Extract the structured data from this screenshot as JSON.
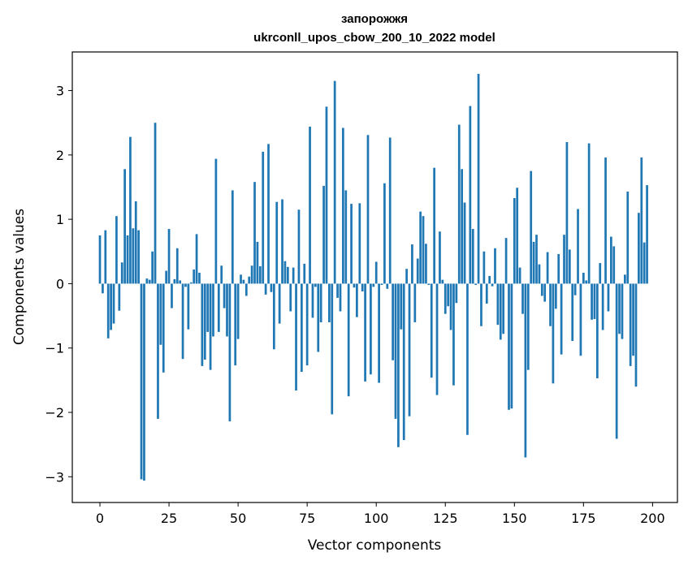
{
  "chart_data": {
    "type": "bar",
    "title_line1": "запорожжя",
    "title_line2": "ukrconll_upos_cbow_200_10_2022 model",
    "xlabel": "Vector components",
    "ylabel": "Components values",
    "xlim": [
      -10,
      209
    ],
    "ylim": [
      -3.4,
      3.6
    ],
    "xticks": [
      0,
      25,
      50,
      75,
      100,
      125,
      150,
      175,
      200
    ],
    "xtick_labels": [
      "0",
      "25",
      "50",
      "75",
      "100",
      "125",
      "150",
      "175",
      "200"
    ],
    "yticks": [
      -3,
      -2,
      -1,
      0,
      1,
      2,
      3
    ],
    "ytick_labels": [
      "−3",
      "−2",
      "−1",
      "0",
      "1",
      "2",
      "3"
    ],
    "bar_color": "#1f77b4",
    "values": [
      0.75,
      -0.15,
      0.83,
      -0.85,
      -0.72,
      -0.62,
      1.05,
      -0.42,
      0.33,
      1.78,
      0.75,
      2.28,
      0.86,
      1.28,
      0.83,
      -3.04,
      -3.06,
      0.08,
      0.06,
      0.5,
      2.5,
      -2.1,
      -0.95,
      -1.38,
      0.2,
      0.85,
      -0.38,
      0.07,
      0.55,
      0.05,
      -1.17,
      -0.05,
      -0.71,
      0.02,
      0.22,
      0.77,
      0.17,
      -1.28,
      -1.18,
      -0.75,
      -1.34,
      -0.82,
      1.94,
      -0.75,
      0.28,
      -0.38,
      -0.82,
      -2.14,
      1.45,
      -1.27,
      -0.86,
      0.14,
      0.06,
      -0.19,
      0.11,
      0.28,
      1.58,
      0.65,
      0.27,
      2.05,
      -0.17,
      2.17,
      -0.13,
      -1.02,
      1.27,
      -0.62,
      1.31,
      0.35,
      0.26,
      -0.43,
      0.25,
      -1.66,
      1.15,
      -1.37,
      0.31,
      -1.27,
      2.44,
      -0.53,
      -0.05,
      -1.06,
      -0.6,
      1.52,
      2.75,
      -0.6,
      -2.03,
      3.15,
      -0.22,
      -0.43,
      2.42,
      1.45,
      -1.75,
      1.24,
      -0.06,
      -0.52,
      1.25,
      -0.12,
      -1.52,
      2.31,
      -1.41,
      -0.05,
      0.34,
      -1.54,
      -0.02,
      1.56,
      -0.08,
      2.27,
      -1.19,
      -2.1,
      -2.54,
      -0.71,
      -2.43,
      0.23,
      -2.06,
      0.61,
      -0.6,
      0.39,
      1.12,
      1.05,
      0.62,
      -0.02,
      -1.46,
      1.8,
      -1.73,
      0.81,
      0.06,
      -0.47,
      -0.35,
      -0.72,
      -1.58,
      -0.3,
      2.47,
      1.78,
      1.26,
      -2.35,
      2.76,
      0.85,
      -0.02,
      3.26,
      -0.66,
      0.5,
      -0.31,
      0.12,
      -0.04,
      0.55,
      -0.64,
      -0.87,
      -0.78,
      0.71,
      -1.96,
      -1.94,
      1.33,
      1.49,
      0.25,
      -0.47,
      -2.7,
      -1.34,
      1.75,
      0.65,
      0.76,
      0.3,
      -0.19,
      -0.28,
      0.49,
      -0.66,
      -1.55,
      -0.39,
      0.46,
      -1.1,
      0.76,
      2.2,
      0.53,
      -0.89,
      -0.18,
      1.16,
      -1.12,
      0.17,
      0.05,
      2.18,
      -0.56,
      -0.55,
      -1.47,
      0.32,
      -0.72,
      1.96,
      -0.43,
      0.73,
      0.58,
      -2.41,
      -0.78,
      -0.86,
      0.14,
      1.43,
      -1.28,
      -1.12,
      -1.6,
      1.1,
      1.96,
      0.64,
      1.53
    ]
  }
}
